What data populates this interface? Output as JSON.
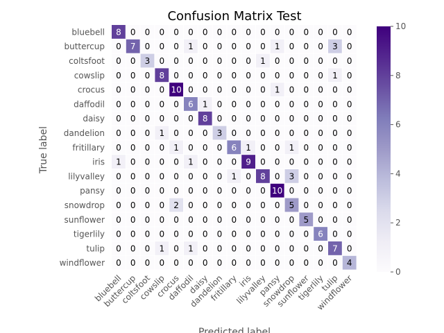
{
  "chart_data": {
    "type": "heatmap",
    "title": "Confusion Matrix Test",
    "xlabel": "Predicted label",
    "ylabel": "True label",
    "labels": [
      "bluebell",
      "buttercup",
      "coltsfoot",
      "cowslip",
      "crocus",
      "daffodil",
      "daisy",
      "dandelion",
      "fritillary",
      "iris",
      "lilyvalley",
      "pansy",
      "snowdrop",
      "sunflower",
      "tigerlily",
      "tulip",
      "windflower"
    ],
    "matrix": [
      [
        8,
        0,
        0,
        0,
        0,
        0,
        0,
        0,
        0,
        0,
        0,
        0,
        0,
        0,
        0,
        0,
        0
      ],
      [
        0,
        7,
        0,
        0,
        0,
        1,
        0,
        0,
        0,
        0,
        0,
        1,
        0,
        0,
        0,
        3,
        0
      ],
      [
        0,
        0,
        3,
        0,
        0,
        0,
        0,
        0,
        0,
        0,
        1,
        0,
        0,
        0,
        0,
        0,
        0
      ],
      [
        0,
        0,
        0,
        8,
        0,
        0,
        0,
        0,
        0,
        0,
        0,
        0,
        0,
        0,
        0,
        1,
        0
      ],
      [
        0,
        0,
        0,
        0,
        10,
        0,
        0,
        0,
        0,
        0,
        0,
        1,
        0,
        0,
        0,
        0,
        0
      ],
      [
        0,
        0,
        0,
        0,
        0,
        6,
        1,
        0,
        0,
        0,
        0,
        0,
        0,
        0,
        0,
        0,
        0
      ],
      [
        0,
        0,
        0,
        0,
        0,
        0,
        8,
        0,
        0,
        0,
        0,
        0,
        0,
        0,
        0,
        0,
        0
      ],
      [
        0,
        0,
        0,
        1,
        0,
        0,
        0,
        3,
        0,
        0,
        0,
        0,
        0,
        0,
        0,
        0,
        0
      ],
      [
        0,
        0,
        0,
        0,
        1,
        0,
        0,
        0,
        6,
        1,
        0,
        0,
        1,
        0,
        0,
        0,
        0
      ],
      [
        1,
        0,
        0,
        0,
        0,
        1,
        0,
        0,
        0,
        9,
        0,
        0,
        0,
        0,
        0,
        0,
        0
      ],
      [
        0,
        0,
        0,
        0,
        0,
        0,
        0,
        0,
        1,
        0,
        8,
        0,
        3,
        0,
        0,
        0,
        0
      ],
      [
        0,
        0,
        0,
        0,
        0,
        0,
        0,
        0,
        0,
        0,
        0,
        10,
        0,
        0,
        0,
        0,
        0
      ],
      [
        0,
        0,
        0,
        0,
        2,
        0,
        0,
        0,
        0,
        0,
        0,
        0,
        5,
        0,
        0,
        0,
        0
      ],
      [
        0,
        0,
        0,
        0,
        0,
        0,
        0,
        0,
        0,
        0,
        0,
        0,
        0,
        5,
        0,
        0,
        0
      ],
      [
        0,
        0,
        0,
        0,
        0,
        0,
        0,
        0,
        0,
        0,
        0,
        0,
        0,
        0,
        6,
        0,
        0
      ],
      [
        0,
        0,
        0,
        1,
        0,
        1,
        0,
        0,
        0,
        0,
        0,
        0,
        0,
        0,
        0,
        7,
        0
      ],
      [
        0,
        0,
        0,
        0,
        0,
        0,
        0,
        0,
        0,
        0,
        0,
        0,
        0,
        0,
        0,
        0,
        4
      ]
    ],
    "colormap": "Purples",
    "vmin": 0,
    "vmax": 10,
    "colorbar_ticks": [
      0,
      2,
      4,
      6,
      8,
      10
    ],
    "grid": true
  }
}
